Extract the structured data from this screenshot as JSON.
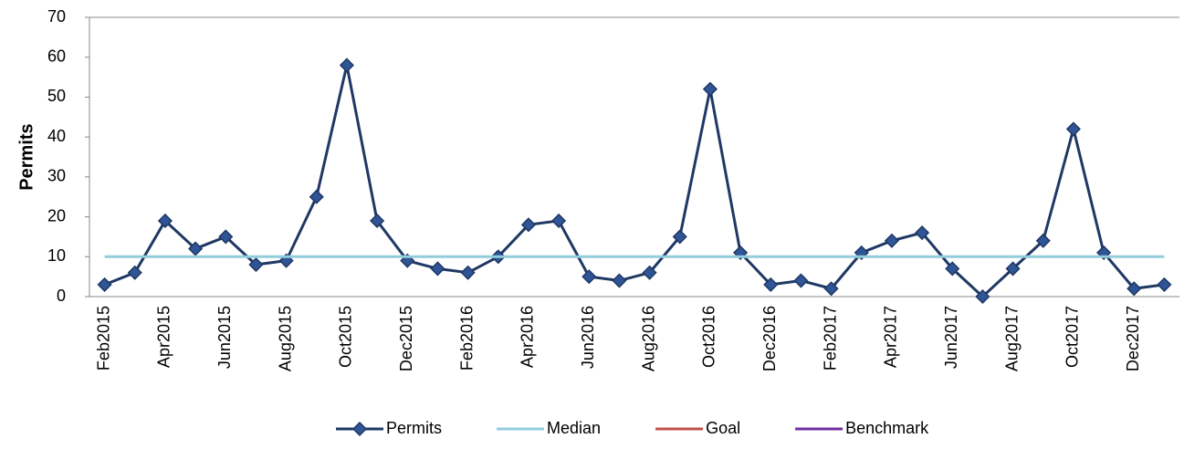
{
  "chart_data": {
    "type": "line",
    "y_label": "Permits",
    "categories": [
      "Feb2015",
      null,
      "Apr2015",
      null,
      "Jun2015",
      null,
      "Aug2015",
      null,
      "Oct2015",
      null,
      "Dec2015",
      null,
      "Feb2016",
      null,
      "Apr2016",
      null,
      "Jun2016",
      null,
      "Aug2016",
      null,
      "Oct2016",
      null,
      "Dec2016",
      null,
      "Feb2017",
      null,
      "Apr2017",
      null,
      "Jun2017",
      null,
      "Aug2017",
      null,
      "Oct2017",
      null,
      "Dec2017",
      null
    ],
    "series": [
      {
        "name": "Permits",
        "color": "#1f3864",
        "marker": "diamond",
        "values": [
          3,
          6,
          19,
          12,
          15,
          8,
          9,
          25,
          58,
          19,
          9,
          7,
          6,
          10,
          18,
          19,
          5,
          4,
          6,
          15,
          52,
          11,
          3,
          4,
          2,
          11,
          14,
          16,
          7,
          0,
          7,
          14,
          42,
          11,
          2,
          3
        ]
      },
      {
        "name": "Median",
        "color": "#92cddc",
        "values": [
          10,
          10,
          10,
          10,
          10,
          10,
          10,
          10,
          10,
          10,
          10,
          10,
          10,
          10,
          10,
          10,
          10,
          10,
          10,
          10,
          10,
          10,
          10,
          10,
          10,
          10,
          10,
          10,
          10,
          10,
          10,
          10,
          10,
          10,
          10,
          10
        ]
      },
      {
        "name": "Goal",
        "color": "#c0504d",
        "values": [
          null,
          null,
          null,
          null,
          null,
          null,
          null,
          null,
          null,
          null,
          null,
          null,
          null,
          null,
          null,
          null,
          null,
          null,
          null,
          null,
          null,
          null,
          null,
          null,
          null,
          null,
          null,
          null,
          null,
          null,
          null,
          null,
          null,
          null,
          null,
          null
        ]
      },
      {
        "name": "Benchmark",
        "color": "#7030a0",
        "values": [
          null,
          null,
          null,
          null,
          null,
          null,
          null,
          null,
          null,
          null,
          null,
          null,
          null,
          null,
          null,
          null,
          null,
          null,
          null,
          null,
          null,
          null,
          null,
          null,
          null,
          null,
          null,
          null,
          null,
          null,
          null,
          null,
          null,
          null,
          null,
          null
        ]
      }
    ],
    "ylim": [
      0,
      70
    ],
    "yticks": [
      0,
      10,
      20,
      30,
      40,
      50,
      60,
      70
    ],
    "grid": false,
    "legend": "bottom"
  }
}
